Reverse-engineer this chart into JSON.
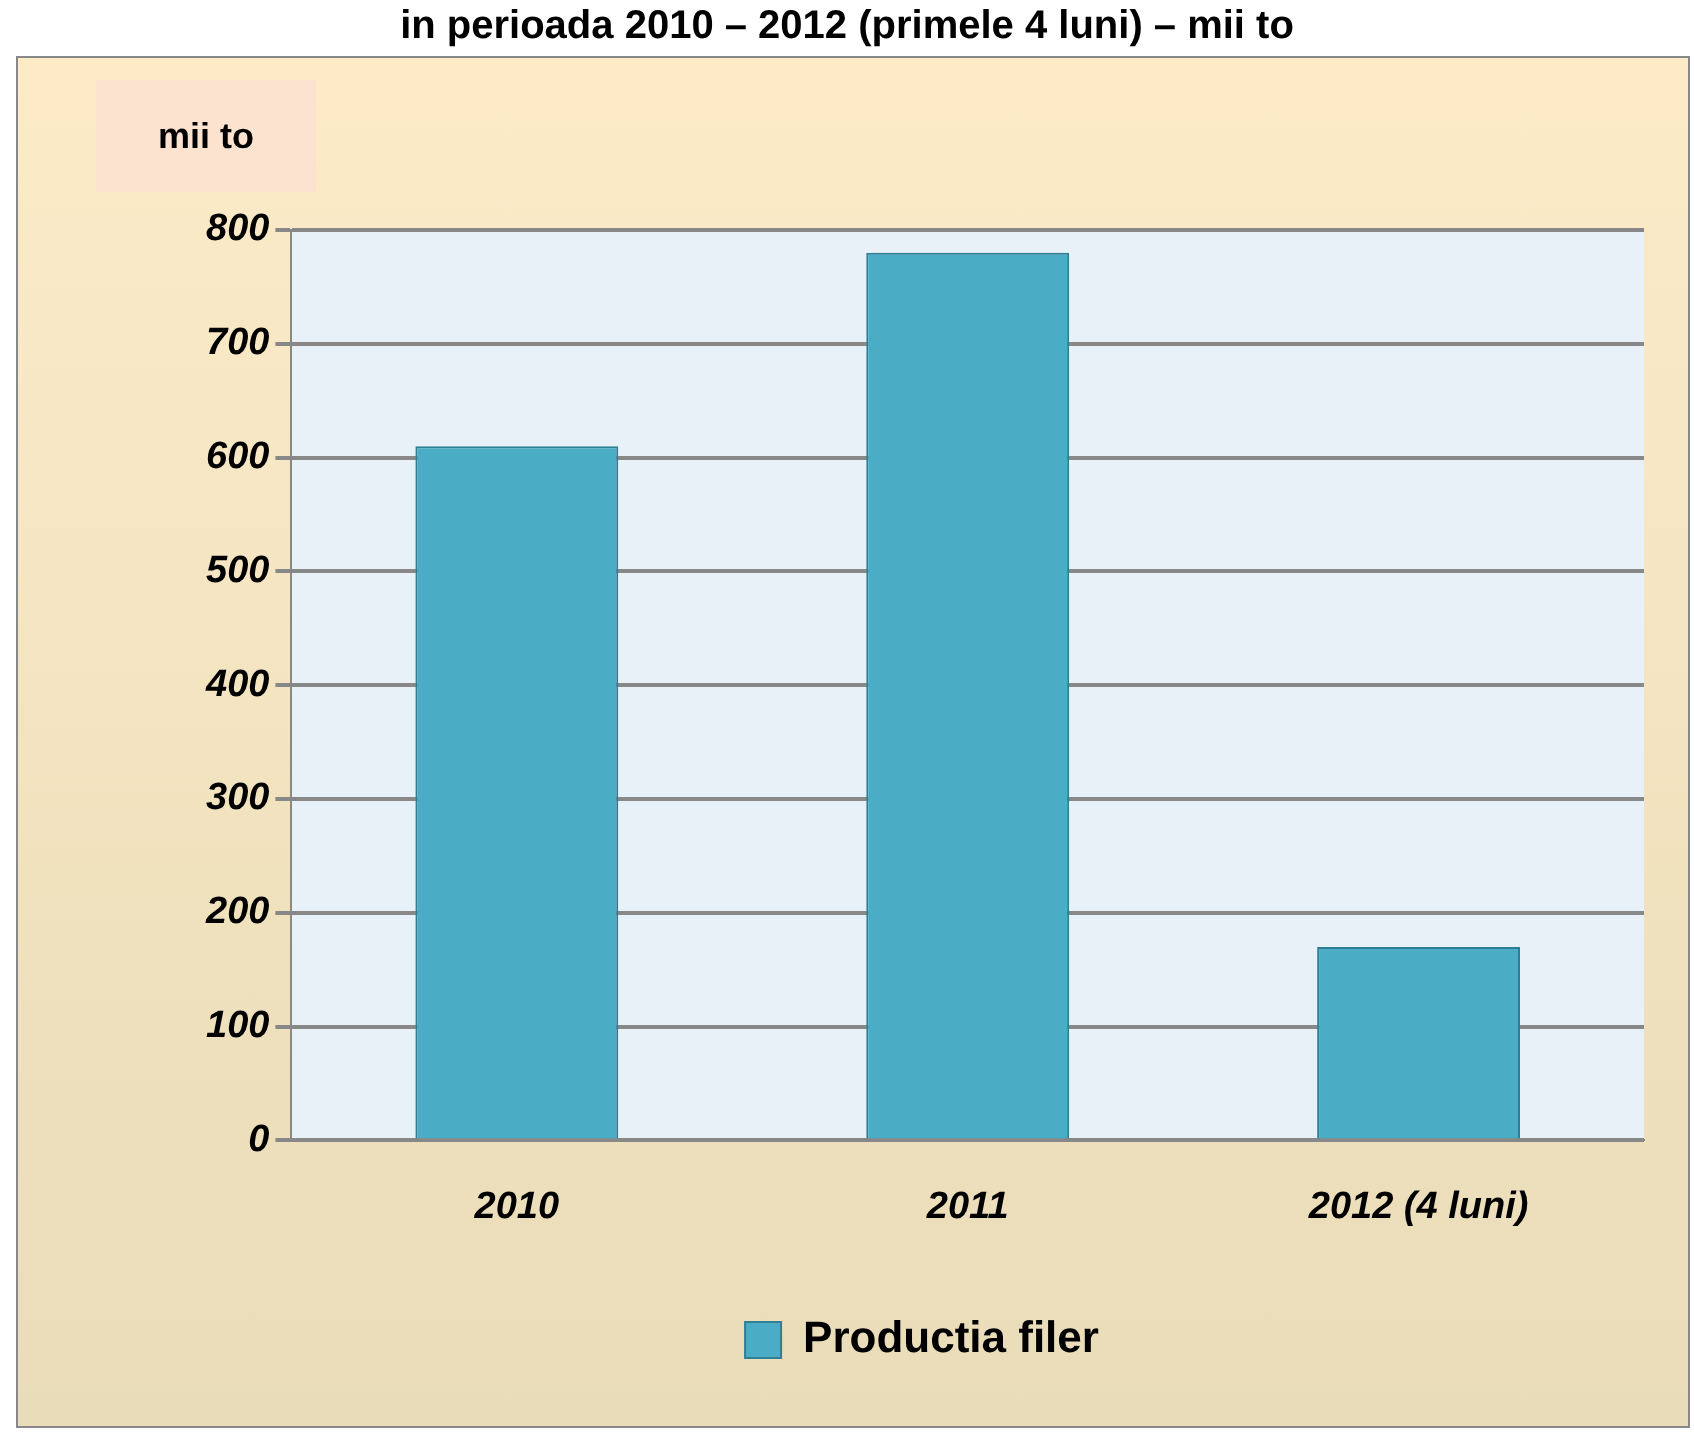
{
  "chart_data": {
    "type": "bar",
    "title": "in perioada 2010 – 2012 (primele 4 luni) – mii to",
    "ylabel": "mii to",
    "categories": [
      "2010",
      "2011",
      "2012 (4 luni)"
    ],
    "series": [
      {
        "name": "Productia filer",
        "color": "#4bacc6",
        "values": [
          610,
          780,
          170
        ]
      }
    ],
    "ylim": [
      0,
      800
    ],
    "yticks": [
      0,
      100,
      200,
      300,
      400,
      500,
      600,
      700,
      800
    ],
    "grid": "y",
    "legend": "bottom"
  }
}
